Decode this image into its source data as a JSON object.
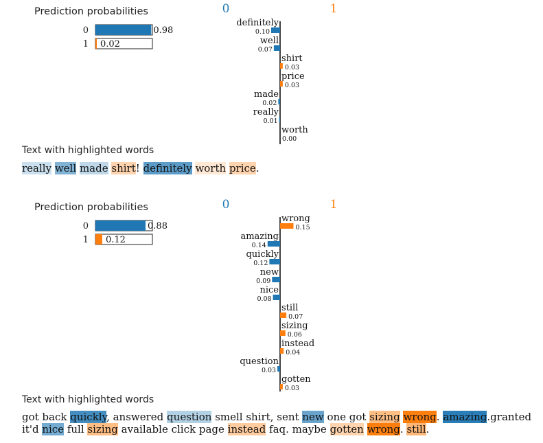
{
  "chart_data": [
    {
      "type": "bar",
      "probabilities": {
        "title": "Prediction probabilities",
        "classes": [
          "0",
          "1"
        ],
        "values": [
          0.98,
          0.02
        ],
        "labels": [
          "0.98",
          "0.02"
        ]
      },
      "class_names": [
        "0",
        "1"
      ],
      "features": [
        {
          "word": "definitely",
          "value": 0.1,
          "label": "0.10",
          "class": 0
        },
        {
          "word": "well",
          "value": 0.07,
          "label": "0.07",
          "class": 0
        },
        {
          "word": "shirt",
          "value": 0.03,
          "label": "0.03",
          "class": 1
        },
        {
          "word": "price",
          "value": 0.03,
          "label": "0.03",
          "class": 1
        },
        {
          "word": "made",
          "value": 0.02,
          "label": "0.02",
          "class": 0
        },
        {
          "word": "really",
          "value": 0.01,
          "label": "0.01",
          "class": 0
        },
        {
          "word": "worth",
          "value": 0.0,
          "label": "0.00",
          "class": 1
        }
      ],
      "text_title": "Text with highlighted words",
      "text_tokens": [
        {
          "t": "really",
          "class": 0,
          "w": 0.01
        },
        {
          "t": " "
        },
        {
          "t": "well",
          "class": 0,
          "w": 0.07
        },
        {
          "t": " "
        },
        {
          "t": "made",
          "class": 0,
          "w": 0.02
        },
        {
          "t": " "
        },
        {
          "t": "shirt",
          "class": 1,
          "w": 0.03
        },
        {
          "t": "! "
        },
        {
          "t": "definitely",
          "class": 0,
          "w": 0.1
        },
        {
          "t": " "
        },
        {
          "t": "worth",
          "class": 1,
          "w": 0.0
        },
        {
          "t": " "
        },
        {
          "t": "price",
          "class": 1,
          "w": 0.03
        },
        {
          "t": "."
        }
      ]
    },
    {
      "type": "bar",
      "probabilities": {
        "title": "Prediction probabilities",
        "classes": [
          "0",
          "1"
        ],
        "values": [
          0.88,
          0.12
        ],
        "labels": [
          "0.88",
          "0.12"
        ]
      },
      "class_names": [
        "0",
        "1"
      ],
      "features": [
        {
          "word": "wrong",
          "value": 0.15,
          "label": "0.15",
          "class": 1
        },
        {
          "word": "amazing",
          "value": 0.14,
          "label": "0.14",
          "class": 0
        },
        {
          "word": "quickly",
          "value": 0.12,
          "label": "0.12",
          "class": 0
        },
        {
          "word": "new",
          "value": 0.09,
          "label": "0.09",
          "class": 0
        },
        {
          "word": "nice",
          "value": 0.08,
          "label": "0.08",
          "class": 0
        },
        {
          "word": "still",
          "value": 0.07,
          "label": "0.07",
          "class": 1
        },
        {
          "word": "sizing",
          "value": 0.06,
          "label": "0.06",
          "class": 1
        },
        {
          "word": "instead",
          "value": 0.04,
          "label": "0.04",
          "class": 1
        },
        {
          "word": "question",
          "value": 0.03,
          "label": "0.03",
          "class": 0
        },
        {
          "word": "gotten",
          "value": 0.03,
          "label": "0.03",
          "class": 1
        }
      ],
      "text_title": "Text with highlighted words",
      "text_tokens": [
        {
          "t": "got back "
        },
        {
          "t": "quickly",
          "class": 0,
          "w": 0.12
        },
        {
          "t": ", answered "
        },
        {
          "t": "question",
          "class": 0,
          "w": 0.03
        },
        {
          "t": " smell shirt, sent "
        },
        {
          "t": "new",
          "class": 0,
          "w": 0.09
        },
        {
          "t": " one got "
        },
        {
          "t": "sizing",
          "class": 1,
          "w": 0.06
        },
        {
          "t": " "
        },
        {
          "t": "wrong",
          "class": 1,
          "w": 0.15
        },
        {
          "t": ". "
        },
        {
          "t": "amazing",
          "class": 0,
          "w": 0.14
        },
        {
          "t": ".granted it'd "
        },
        {
          "t": "nice",
          "class": 0,
          "w": 0.08
        },
        {
          "t": " full "
        },
        {
          "t": "sizing",
          "class": 1,
          "w": 0.06
        },
        {
          "t": " available click page "
        },
        {
          "t": "instead",
          "class": 1,
          "w": 0.04
        },
        {
          "t": " faq. maybe "
        },
        {
          "t": "gotten",
          "class": 1,
          "w": 0.03
        },
        {
          "t": " "
        },
        {
          "t": "wrong",
          "class": 1,
          "w": 0.15
        },
        {
          "t": ". "
        },
        {
          "t": "still",
          "class": 1,
          "w": 0.07
        },
        {
          "t": "."
        }
      ]
    }
  ],
  "colors": {
    "class0": "#1f77b4",
    "class1": "#ff7f0e"
  }
}
